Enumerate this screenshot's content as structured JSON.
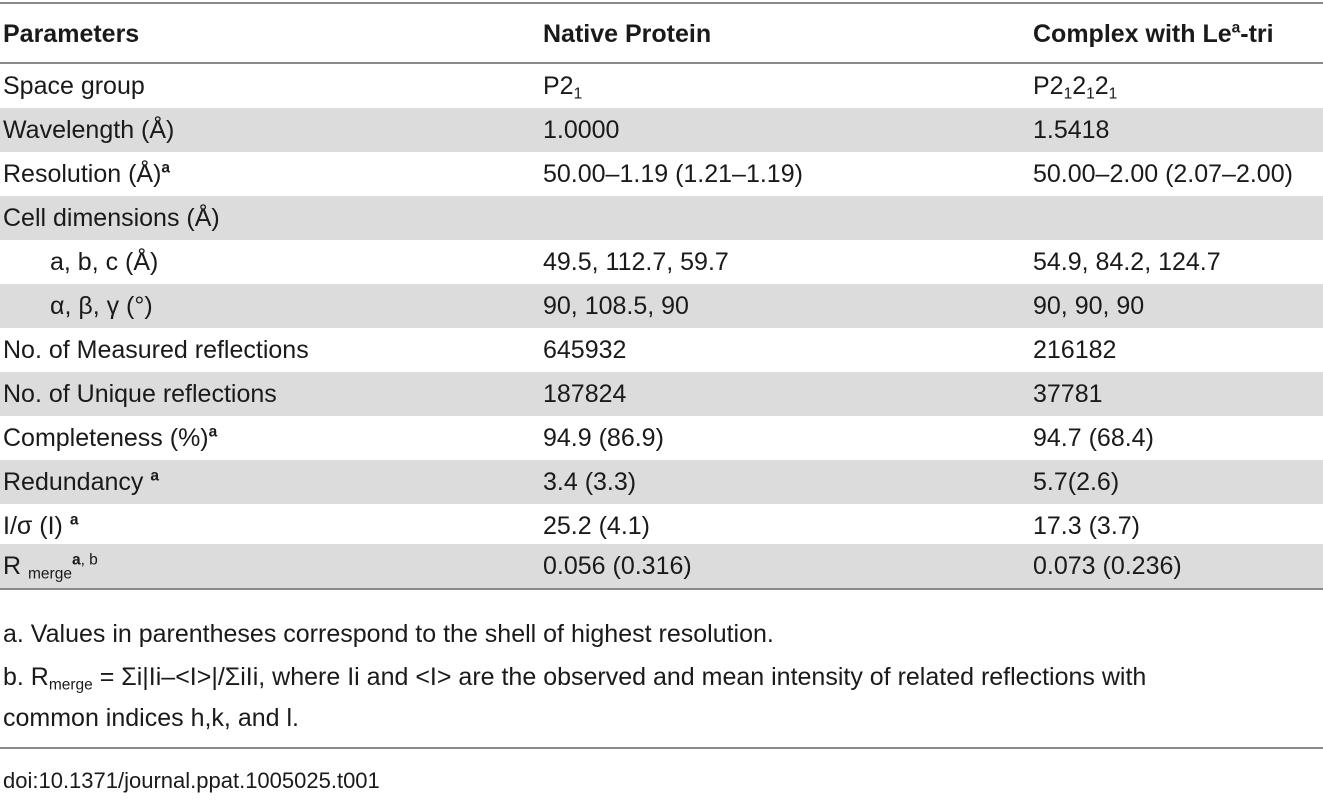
{
  "table": {
    "headers": {
      "c1": "Parameters",
      "c2": "Native Protein",
      "c3_pre": "Complex with Le",
      "c3_sup": "a",
      "c3_post": "-tri"
    },
    "rows": [
      {
        "label": "Space group",
        "native_base": "P2",
        "native_sub": "1",
        "cx_base": "P2",
        "cx_sub1": "1",
        "cx_mid": "2",
        "cx_sub2": "1",
        "cx_mid2": "2",
        "cx_sub3": "1"
      },
      {
        "label": "Wavelength (Å)",
        "native": "1.0000",
        "complex": "1.5418"
      },
      {
        "label": "Resolution (Å)",
        "label_sup": "a",
        "native": "50.00–1.19 (1.21–1.19)",
        "complex": "50.00–2.00 (2.07–2.00)"
      },
      {
        "label": "Cell dimensions (Å)",
        "native": "",
        "complex": ""
      },
      {
        "label": "a, b, c (Å)",
        "native": "49.5, 112.7, 59.7",
        "complex": "54.9, 84.2, 124.7"
      },
      {
        "label": "α, β, γ (°)",
        "native": "90, 108.5, 90",
        "complex": "90, 90, 90"
      },
      {
        "label": "No. of Measured reflections",
        "native": "645932",
        "complex": "216182"
      },
      {
        "label": "No. of Unique reflections",
        "native": "187824",
        "complex": "37781"
      },
      {
        "label": "Completeness (%)",
        "label_sup": "a",
        "native": "94.9 (86.9)",
        "complex": "94.7 (68.4)"
      },
      {
        "label": "Redundancy ",
        "label_sup": "a",
        "native": "3.4 (3.3)",
        "complex": "5.7(2.6)"
      },
      {
        "label": "I/σ (I) ",
        "label_sup": "a",
        "native": "25.2 (4.1)",
        "complex": "17.3 (3.7)"
      },
      {
        "label": "R ",
        "label_sub": "merge",
        "label_sup_a": "a",
        "label_sup_b": ", b",
        "native": "0.056 (0.316)",
        "complex": "0.073 (0.236)"
      }
    ]
  },
  "footnotes": {
    "a": "a. Values in parentheses correspond to the shell of highest resolution.",
    "b_pre": "b. R",
    "b_sub": "merge",
    "b_line1": " = Σi|Ii–<I>|/ΣiIi, where Ii and <I> are the observed and mean intensity of related reflections with",
    "b_line2": "common indices h,k, and l."
  },
  "doi": "doi:10.1371/journal.ppat.1005025.t001"
}
